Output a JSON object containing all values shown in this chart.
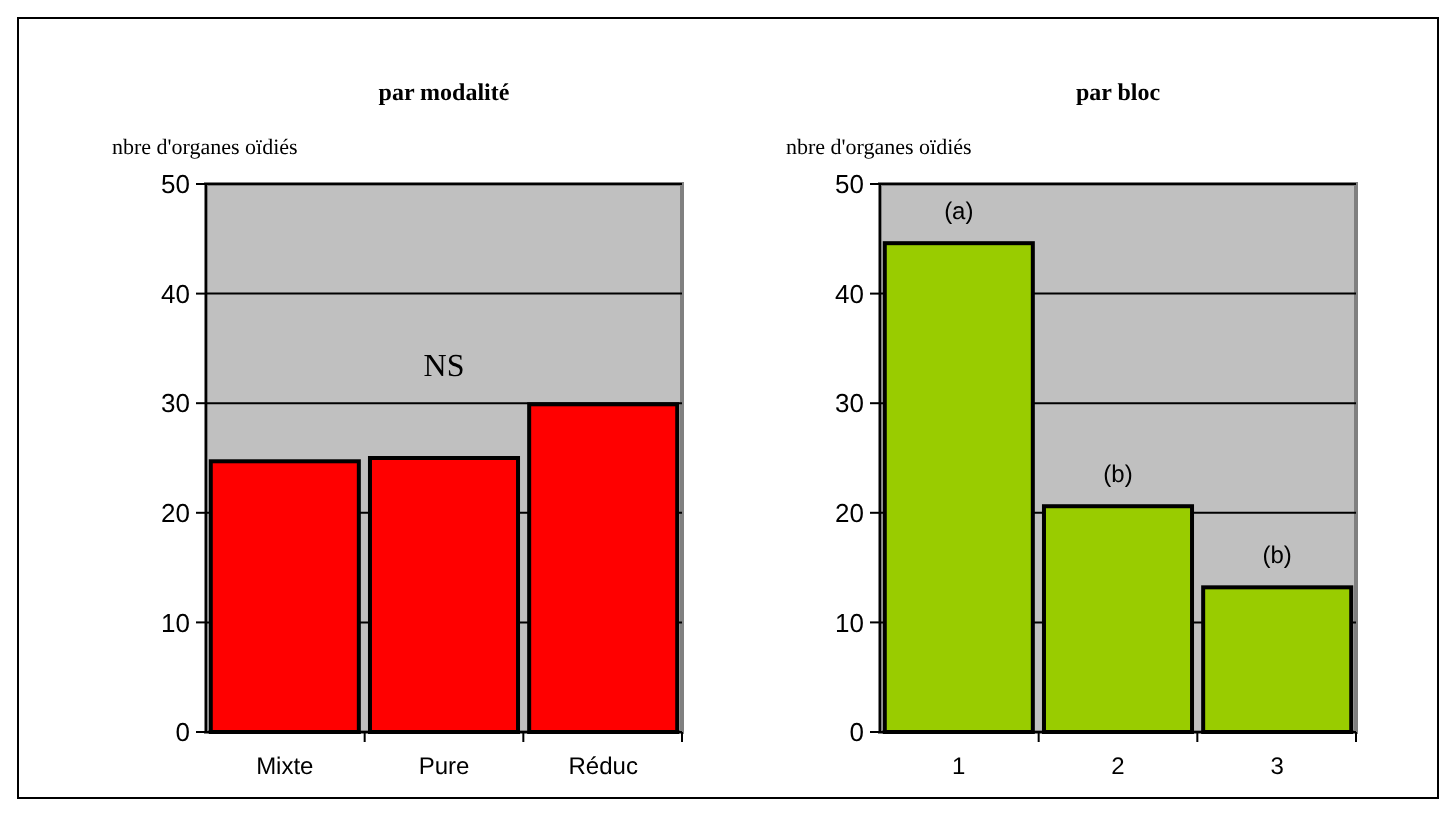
{
  "chart_data": [
    {
      "type": "bar",
      "title": "par modalité",
      "ylabel": "nbre d'organes oïdiés",
      "categories": [
        "Mixte",
        "Pure",
        "Réduc"
      ],
      "values": [
        24.7,
        25.0,
        29.9
      ],
      "color": "#ff0000",
      "ylim": [
        0,
        50
      ],
      "yticks": [
        0,
        10,
        20,
        30,
        40,
        50
      ],
      "grid": "y",
      "annotations": [
        "NS"
      ]
    },
    {
      "type": "bar",
      "title": "par bloc",
      "ylabel": "nbre d'organes oïdiés",
      "categories": [
        "1",
        "2",
        "3"
      ],
      "values": [
        44.6,
        20.6,
        13.2
      ],
      "color": "#99cc00",
      "ylim": [
        0,
        50
      ],
      "yticks": [
        0,
        10,
        20,
        30,
        40,
        50
      ],
      "grid": "y",
      "annotations": [
        {
          "text": "(a)",
          "x": "1",
          "y": 44.6
        },
        {
          "text": "(b)",
          "x": "2",
          "y": 20.6
        },
        {
          "text": "(b)",
          "x": "3",
          "y": 13.2
        }
      ]
    }
  ]
}
